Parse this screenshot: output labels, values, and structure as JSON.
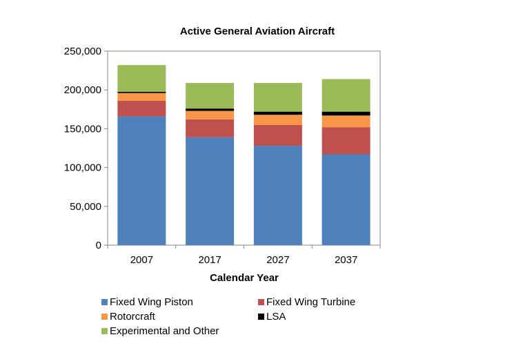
{
  "chart_data": {
    "type": "bar",
    "stacked": true,
    "title": "Active General Aviation Aircraft",
    "xlabel": "Calendar Year",
    "ylabel": "",
    "categories": [
      "2007",
      "2017",
      "2027",
      "2037"
    ],
    "ylim": [
      0,
      250000
    ],
    "yticks": [
      0,
      50000,
      100000,
      150000,
      200000,
      250000
    ],
    "ytick_labels": [
      "0",
      "50,000",
      "100,000",
      "150,000",
      "200,000",
      "250,000"
    ],
    "grid": false,
    "legend_position": "bottom",
    "series": [
      {
        "name": "Fixed Wing Piston",
        "color": "#4f81bd",
        "values": [
          166000,
          139000,
          128000,
          117000
        ]
      },
      {
        "name": "Fixed Wing Turbine",
        "color": "#c0504d",
        "values": [
          20000,
          23000,
          27000,
          35000
        ]
      },
      {
        "name": "Rotorcraft",
        "color": "#f79646",
        "values": [
          10000,
          11000,
          13000,
          15000
        ]
      },
      {
        "name": "LSA",
        "color": "#000000",
        "values": [
          1500,
          3000,
          4000,
          5000
        ]
      },
      {
        "name": "Experimental and Other",
        "color": "#9bbb59",
        "values": [
          34500,
          33000,
          37000,
          42000
        ]
      }
    ]
  }
}
